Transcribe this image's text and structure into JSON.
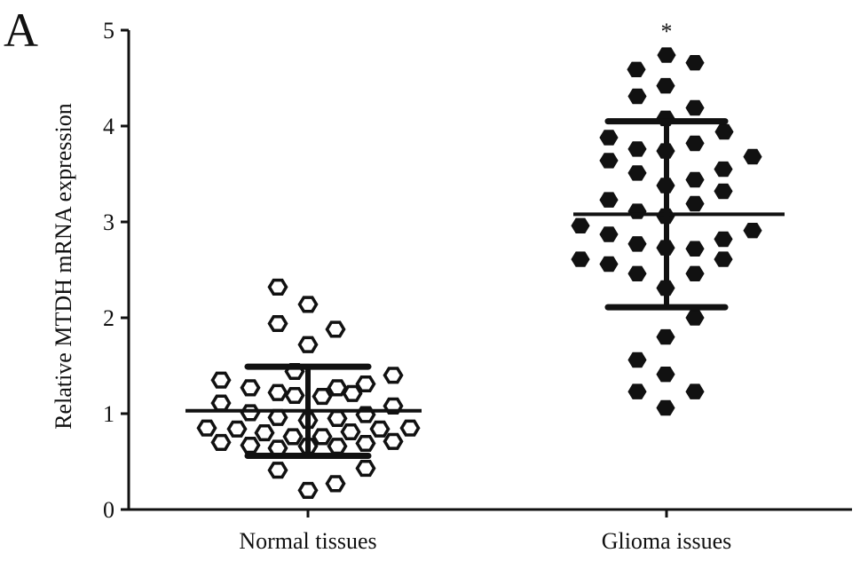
{
  "panel_label": "A",
  "chart_data": {
    "type": "scatter",
    "subtype": "dot-plot-with-mean-and-sd",
    "title": "",
    "xlabel": "",
    "ylabel": "Relative MTDH mRNA expression",
    "ylim": [
      0,
      5
    ],
    "yticks": [
      "0",
      "1",
      "2",
      "3",
      "4",
      "5"
    ],
    "categories": [
      "Normal tissues",
      "Glioma issues"
    ],
    "grid": false,
    "legend": "none",
    "annotations": [
      {
        "category": "Glioma issues",
        "text": "*"
      }
    ],
    "series": [
      {
        "category": "Normal tissues",
        "marker": "open-hexagon",
        "mean": 1.03,
        "sd_upper": 1.49,
        "sd_lower": 0.56,
        "values": [
          2.32,
          2.14,
          1.94,
          1.88,
          1.72,
          1.44,
          1.35,
          1.4,
          1.27,
          1.22,
          1.19,
          1.18,
          1.27,
          1.21,
          1.31,
          1.11,
          1.08,
          1.01,
          0.96,
          0.93,
          0.95,
          0.99,
          0.85,
          0.84,
          0.8,
          0.76,
          0.76,
          0.81,
          0.84,
          0.85,
          0.7,
          0.67,
          0.64,
          0.66,
          0.66,
          0.69,
          0.71,
          0.41,
          0.43,
          0.2,
          0.27
        ]
      },
      {
        "category": "Glioma issues",
        "marker": "filled-hexagon",
        "mean": 3.08,
        "sd_upper": 4.05,
        "sd_lower": 2.11,
        "values": [
          4.74,
          4.59,
          4.66,
          4.42,
          4.31,
          4.19,
          4.08,
          3.88,
          3.94,
          3.76,
          3.82,
          3.74,
          3.64,
          3.68,
          3.51,
          3.55,
          3.38,
          3.44,
          3.32,
          3.23,
          3.19,
          3.11,
          3.06,
          2.96,
          2.91,
          2.87,
          2.82,
          2.77,
          2.73,
          2.72,
          2.61,
          2.61,
          2.56,
          2.46,
          2.46,
          2.31,
          2.0,
          1.8,
          1.56,
          1.41,
          1.23,
          1.23,
          1.06
        ]
      }
    ]
  }
}
